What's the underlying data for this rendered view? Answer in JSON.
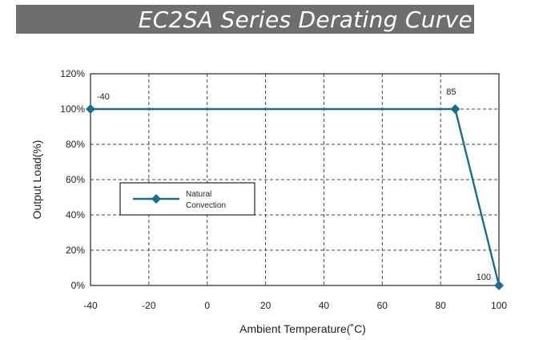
{
  "title": "EC2SA Series Derating Curve",
  "colors": {
    "title_bg": "#6e6e6e",
    "title_text": "#ffffff",
    "series": "#1b6d8e",
    "grid": "#444444"
  },
  "chart_data": {
    "type": "line",
    "xlabel": "Ambient Temperature(˚C)",
    "ylabel": "Output Load(%)",
    "xlim": [
      -40,
      100
    ],
    "ylim": [
      0,
      120
    ],
    "x_ticks": [
      -40,
      -20,
      0,
      20,
      40,
      60,
      80,
      100
    ],
    "x_tick_labels": [
      "-40",
      "-20",
      "0",
      "20",
      "40",
      "60",
      "80",
      "100"
    ],
    "y_ticks": [
      0,
      20,
      40,
      60,
      80,
      100,
      120
    ],
    "y_tick_labels": [
      "0%",
      "20%",
      "40%",
      "60%",
      "80%",
      "100%",
      "120%"
    ],
    "grid": true,
    "legend_position": "left",
    "series": [
      {
        "name": "Natural Convection",
        "x": [
          -40,
          85,
          100
        ],
        "y": [
          100,
          100,
          0
        ],
        "point_labels": [
          "-40",
          "85",
          "100"
        ]
      }
    ]
  }
}
